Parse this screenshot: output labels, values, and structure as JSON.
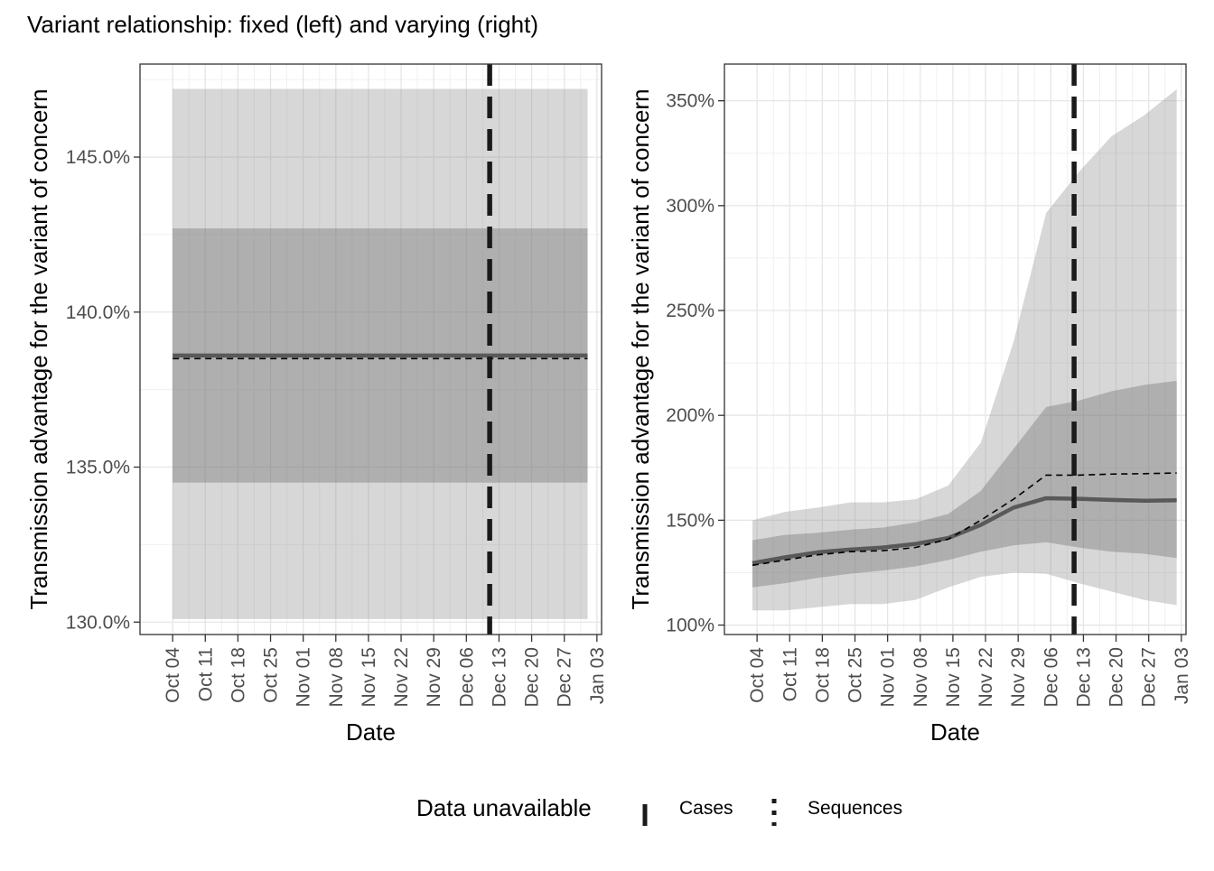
{
  "title": "Variant relationship: fixed (left) and varying (right)",
  "legend": {
    "title": "Data unavailable",
    "items": [
      {
        "label": "Cases",
        "linetype": "long-dash"
      },
      {
        "label": "Sequences",
        "linetype": "dotted"
      }
    ]
  },
  "chart_data": [
    {
      "type": "line",
      "panel": "fixed",
      "xlabel": "Date",
      "ylabel": "Transmission advantage for the variant of concern",
      "x_ticks": [
        "Oct 04",
        "Oct 11",
        "Oct 18",
        "Oct 25",
        "Nov 01",
        "Nov 08",
        "Nov 15",
        "Nov 22",
        "Nov 29",
        "Dec 06",
        "Dec 13",
        "Dec 20",
        "Dec 27",
        "Jan 03"
      ],
      "x_tick_dates": [
        "2020-10-04",
        "2020-10-11",
        "2020-10-18",
        "2020-10-25",
        "2020-11-01",
        "2020-11-08",
        "2020-11-15",
        "2020-11-22",
        "2020-11-29",
        "2020-12-06",
        "2020-12-13",
        "2020-12-20",
        "2020-12-27",
        "2021-01-03"
      ],
      "x_range": [
        "2020-09-27",
        "2021-01-04"
      ],
      "y_ticks": [
        130,
        135,
        140,
        145
      ],
      "y_tick_labels": [
        "130.0%",
        "135.0%",
        "140.0%",
        "145.0%"
      ],
      "ylim": [
        129.6,
        148.0
      ],
      "x": [
        "2020-10-04",
        "2021-01-01"
      ],
      "median": [
        138.6,
        138.6
      ],
      "median_dashed": [
        138.5,
        138.5
      ],
      "ci90": [
        [
          130.1,
          147.2
        ],
        [
          130.1,
          147.2
        ]
      ],
      "ci50": [
        [
          134.5,
          142.7
        ],
        [
          134.5,
          142.7
        ]
      ],
      "vline_date": "2020-12-11",
      "grid": true
    },
    {
      "type": "line",
      "panel": "varying",
      "xlabel": "Date",
      "ylabel": "Transmission advantage for the variant of concern",
      "x_ticks": [
        "Oct 04",
        "Oct 11",
        "Oct 18",
        "Oct 25",
        "Nov 01",
        "Nov 08",
        "Nov 15",
        "Nov 22",
        "Nov 29",
        "Dec 06",
        "Dec 13",
        "Dec 20",
        "Dec 27",
        "Jan 03"
      ],
      "x_tick_dates": [
        "2020-10-04",
        "2020-10-11",
        "2020-10-18",
        "2020-10-25",
        "2020-11-01",
        "2020-11-08",
        "2020-11-15",
        "2020-11-22",
        "2020-11-29",
        "2020-12-06",
        "2020-12-13",
        "2020-12-20",
        "2020-12-27",
        "2021-01-03"
      ],
      "x_range": [
        "2020-09-27",
        "2021-01-04"
      ],
      "y_ticks": [
        100,
        150,
        200,
        250,
        300,
        350
      ],
      "y_tick_labels": [
        "100%",
        "150%",
        "200%",
        "250%",
        "300%",
        "350%"
      ],
      "ylim": [
        95.5,
        367.5
      ],
      "x": [
        "2020-10-03",
        "2020-10-10",
        "2020-10-17",
        "2020-10-24",
        "2020-10-31",
        "2020-11-07",
        "2020-11-14",
        "2020-11-21",
        "2020-11-28",
        "2020-12-05",
        "2020-12-12",
        "2020-12-19",
        "2020-12-26",
        "2021-01-02"
      ],
      "median": [
        129.5,
        132.3,
        134.7,
        136.0,
        137.0,
        138.7,
        141.5,
        147.8,
        156.0,
        160.5,
        160.2,
        159.7,
        159.3,
        159.5
      ],
      "median_dashed": [
        128.5,
        131.0,
        133.5,
        135.0,
        135.5,
        137.0,
        141.0,
        150.0,
        160.0,
        171.5,
        171.5,
        172.0,
        172.2,
        172.5
      ],
      "ci90_low": [
        107.0,
        107.0,
        108.5,
        110.0,
        110.0,
        112.0,
        118.0,
        123.0,
        125.0,
        124.5,
        120.0,
        116.0,
        112.0,
        109.5
      ],
      "ci90_high": [
        150.0,
        154.0,
        156.0,
        158.5,
        158.5,
        160.0,
        166.5,
        187.0,
        235.0,
        296.5,
        316.0,
        333.0,
        343.0,
        355.5
      ],
      "ci50_low": [
        118.0,
        120.0,
        122.5,
        124.5,
        126.0,
        128.0,
        131.0,
        135.0,
        138.0,
        139.5,
        137.0,
        135.0,
        134.0,
        132.0
      ],
      "ci50_high": [
        140.5,
        143.0,
        144.0,
        145.5,
        146.5,
        149.0,
        153.0,
        164.0,
        184.0,
        204.0,
        207.0,
        211.5,
        214.5,
        216.5
      ],
      "vline_date": "2020-12-11",
      "grid": true
    }
  ]
}
